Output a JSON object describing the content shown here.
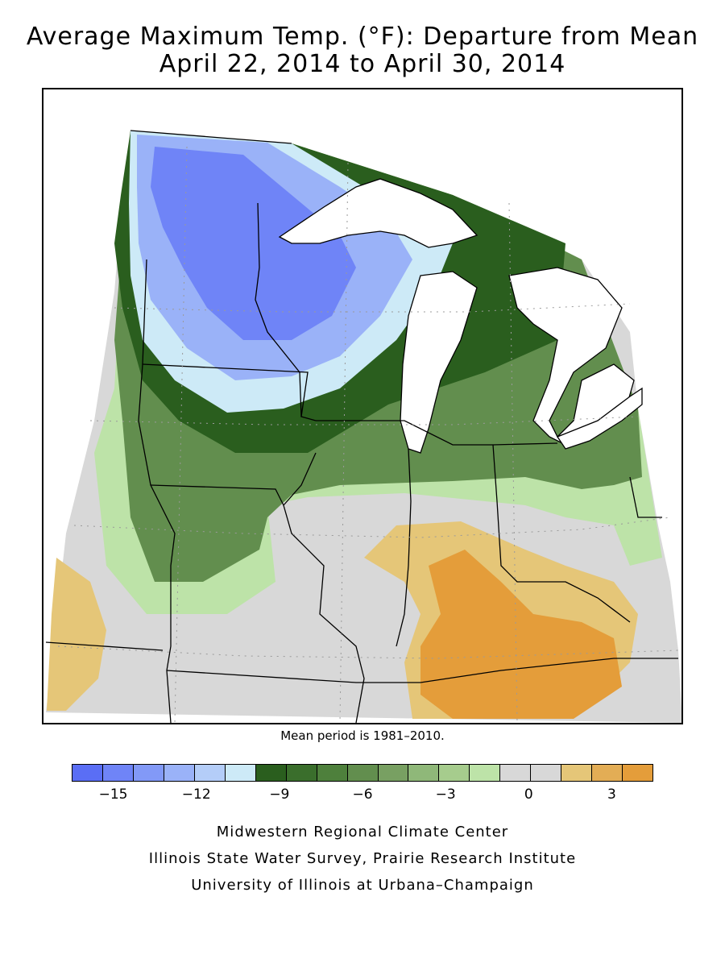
{
  "title": {
    "line1": "Average Maximum Temp. (°F): Departure from Mean",
    "line2": "April 22, 2014 to April 30, 2014"
  },
  "mean_period": "Mean period is 1981–2010.",
  "legend": {
    "colors": [
      "#5a6ef5",
      "#6f84f7",
      "#8299f7",
      "#9ab2f8",
      "#b4cdf8",
      "#cdeaf7",
      "#2a5e1e",
      "#3a6e2c",
      "#4e803c",
      "#628e4e",
      "#78a062",
      "#8fb879",
      "#a6cc8d",
      "#bde3a8",
      "#d8d8d8",
      "#d8d8d8",
      "#e5c678",
      "#e3ad55",
      "#e49d3a"
    ],
    "tick_labels": [
      "−15",
      "−12",
      "−9",
      "−6",
      "−3",
      "0",
      "3"
    ],
    "tick_values": [
      -15,
      -12,
      -9,
      -6,
      -3,
      0,
      3
    ],
    "min": -16.5,
    "max": 4.5,
    "units": "°F"
  },
  "credits": {
    "line1": "Midwestern Regional Climate Center",
    "line2": "Illinois State Water Survey, Prairie Research Institute",
    "line3": "University of Illinois at Urbana–Champaign"
  },
  "map": {
    "region": "Upper Midwest / Great Lakes",
    "colors": {
      "cold_strong": "#6f84f7",
      "cold_mid": "#9ab2f8",
      "cold_light": "#cdeaf7",
      "green_dark": "#2a5e1e",
      "green_mid": "#628e4e",
      "green_light": "#a6cc8d",
      "green_pale": "#bde3a8",
      "neutral": "#d8d8d8",
      "warm_light": "#e5c678",
      "warm": "#e49d3a",
      "lake": "#ffffff",
      "border": "#000000",
      "grid": "#9a9a9a"
    }
  }
}
